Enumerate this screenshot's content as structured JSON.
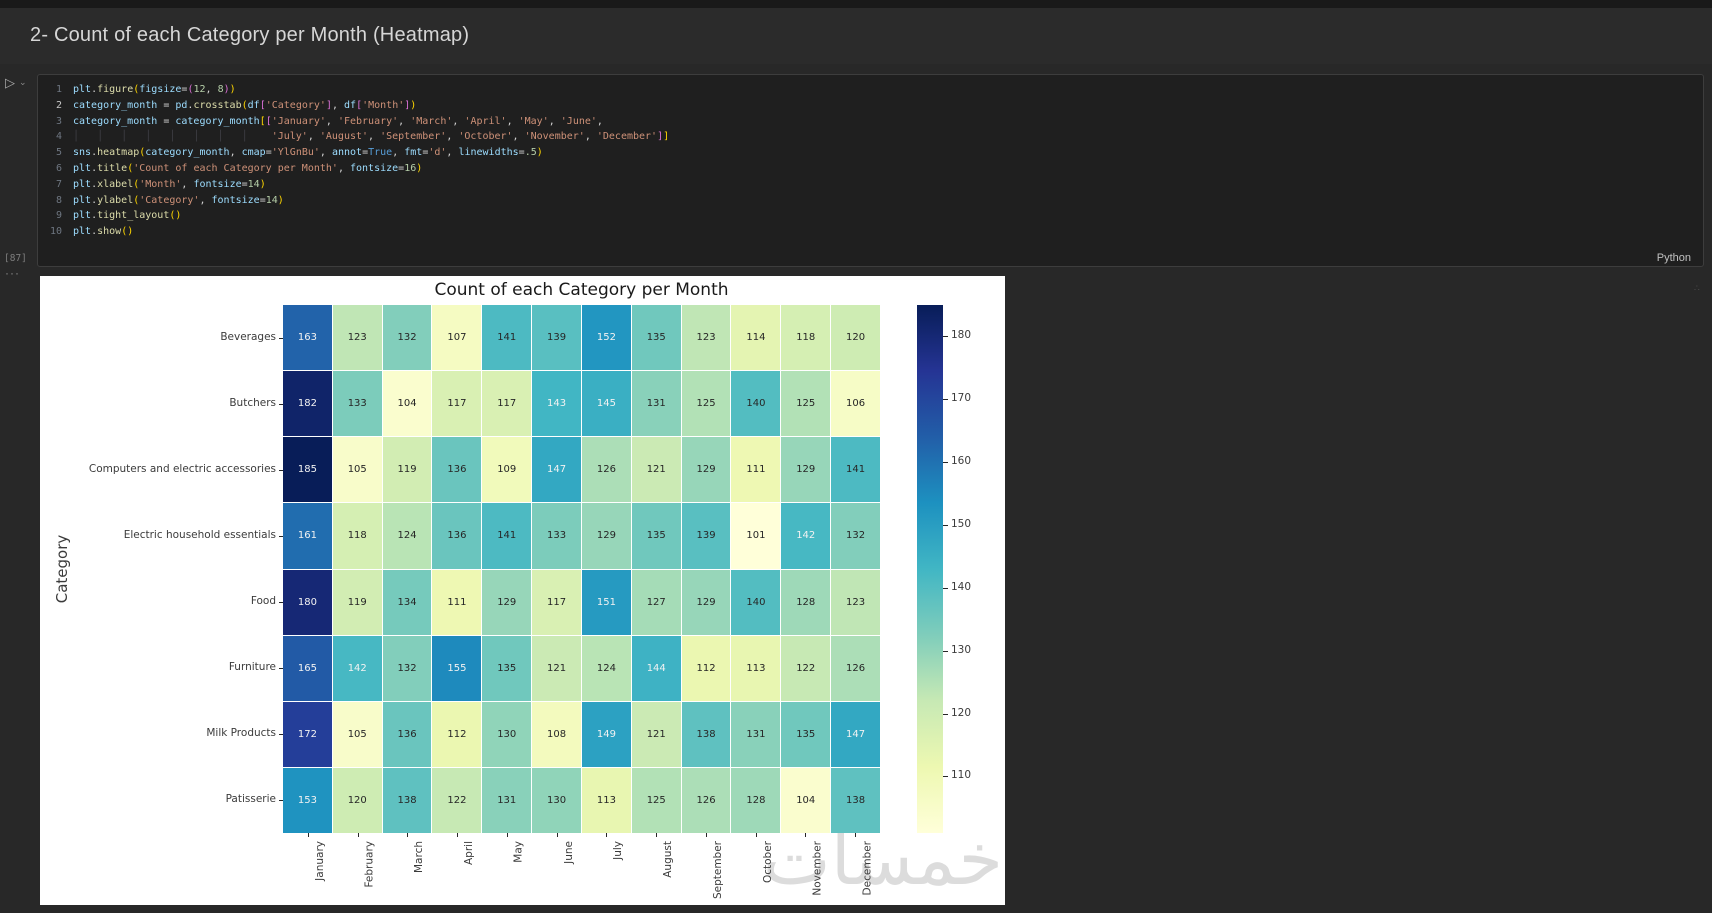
{
  "markdown": {
    "heading": "2- Count of each Category per Month (Heatmap)"
  },
  "cell": {
    "execution_count": "[87]",
    "language_label": "Python",
    "overflow_dots": "···",
    "run_icon": "run-cell-play",
    "code_lines": [
      {
        "n": 1,
        "t": [
          [
            "v",
            "plt"
          ],
          [
            "p",
            "."
          ],
          [
            "f",
            "figure"
          ],
          [
            "b1",
            "("
          ],
          [
            "v",
            "figsize"
          ],
          [
            "p",
            "="
          ],
          [
            "b2",
            "("
          ],
          [
            "n",
            "12"
          ],
          [
            "p",
            ", "
          ],
          [
            "n",
            "8"
          ],
          [
            "b2",
            ")"
          ],
          [
            "b1",
            ")"
          ]
        ]
      },
      {
        "n": 2,
        "t": [
          [
            "v",
            "category_month"
          ],
          [
            "p",
            " = "
          ],
          [
            "v",
            "pd"
          ],
          [
            "p",
            "."
          ],
          [
            "f",
            "crosstab"
          ],
          [
            "b1",
            "("
          ],
          [
            "v",
            "df"
          ],
          [
            "b2",
            "["
          ],
          [
            "s",
            "'Category'"
          ],
          [
            "b2",
            "]"
          ],
          [
            "p",
            ", "
          ],
          [
            "v",
            "df"
          ],
          [
            "b2",
            "["
          ],
          [
            "s",
            "'Month'"
          ],
          [
            "b2",
            "]"
          ],
          [
            "b1",
            ")"
          ]
        ]
      },
      {
        "n": 3,
        "t": [
          [
            "v",
            "category_month"
          ],
          [
            "p",
            " = "
          ],
          [
            "v",
            "category_month"
          ],
          [
            "b1",
            "["
          ],
          [
            "b2",
            "["
          ],
          [
            "s",
            "'January'"
          ],
          [
            "p",
            ", "
          ],
          [
            "s",
            "'February'"
          ],
          [
            "p",
            ", "
          ],
          [
            "s",
            "'March'"
          ],
          [
            "p",
            ", "
          ],
          [
            "s",
            "'April'"
          ],
          [
            "p",
            ", "
          ],
          [
            "s",
            "'May'"
          ],
          [
            "p",
            ", "
          ],
          [
            "s",
            "'June'"
          ],
          [
            "p",
            ","
          ]
        ]
      },
      {
        "n": 4,
        "t": [
          [
            "g",
            "│   │   │   │   │   │   │   │   "
          ],
          [
            "p",
            " "
          ],
          [
            "s",
            "'July'"
          ],
          [
            "p",
            ", "
          ],
          [
            "s",
            "'August'"
          ],
          [
            "p",
            ", "
          ],
          [
            "s",
            "'September'"
          ],
          [
            "p",
            ", "
          ],
          [
            "s",
            "'October'"
          ],
          [
            "p",
            ", "
          ],
          [
            "s",
            "'November'"
          ],
          [
            "p",
            ", "
          ],
          [
            "s",
            "'December'"
          ],
          [
            "b2",
            "]"
          ],
          [
            "b1",
            "]"
          ]
        ]
      },
      {
        "n": 5,
        "t": [
          [
            "v",
            "sns"
          ],
          [
            "p",
            "."
          ],
          [
            "f",
            "heatmap"
          ],
          [
            "b1",
            "("
          ],
          [
            "v",
            "category_month"
          ],
          [
            "p",
            ", "
          ],
          [
            "v",
            "cmap"
          ],
          [
            "p",
            "="
          ],
          [
            "s",
            "'YlGnBu'"
          ],
          [
            "p",
            ", "
          ],
          [
            "v",
            "annot"
          ],
          [
            "p",
            "="
          ],
          [
            "k",
            "True"
          ],
          [
            "p",
            ", "
          ],
          [
            "v",
            "fmt"
          ],
          [
            "p",
            "="
          ],
          [
            "s",
            "'d'"
          ],
          [
            "p",
            ", "
          ],
          [
            "v",
            "linewidths"
          ],
          [
            "p",
            "="
          ],
          [
            "n",
            ".5"
          ],
          [
            "b1",
            ")"
          ]
        ]
      },
      {
        "n": 6,
        "t": [
          [
            "v",
            "plt"
          ],
          [
            "p",
            "."
          ],
          [
            "f",
            "title"
          ],
          [
            "b1",
            "("
          ],
          [
            "s",
            "'Count of each Category per Month'"
          ],
          [
            "p",
            ", "
          ],
          [
            "v",
            "fontsize"
          ],
          [
            "p",
            "="
          ],
          [
            "n",
            "16"
          ],
          [
            "b1",
            ")"
          ]
        ]
      },
      {
        "n": 7,
        "t": [
          [
            "v",
            "plt"
          ],
          [
            "p",
            "."
          ],
          [
            "f",
            "xlabel"
          ],
          [
            "b1",
            "("
          ],
          [
            "s",
            "'Month'"
          ],
          [
            "p",
            ", "
          ],
          [
            "v",
            "fontsize"
          ],
          [
            "p",
            "="
          ],
          [
            "n",
            "14"
          ],
          [
            "b1",
            ")"
          ]
        ]
      },
      {
        "n": 8,
        "t": [
          [
            "v",
            "plt"
          ],
          [
            "p",
            "."
          ],
          [
            "f",
            "ylabel"
          ],
          [
            "b1",
            "("
          ],
          [
            "s",
            "'Category'"
          ],
          [
            "p",
            ", "
          ],
          [
            "v",
            "fontsize"
          ],
          [
            "p",
            "="
          ],
          [
            "n",
            "14"
          ],
          [
            "b1",
            ")"
          ]
        ]
      },
      {
        "n": 9,
        "t": [
          [
            "v",
            "plt"
          ],
          [
            "p",
            "."
          ],
          [
            "f",
            "tight_layout"
          ],
          [
            "b1",
            "("
          ],
          [
            "b1",
            ")"
          ]
        ]
      },
      {
        "n": 10,
        "t": [
          [
            "v",
            "plt"
          ],
          [
            "p",
            "."
          ],
          [
            "f",
            "show"
          ],
          [
            "b1",
            "("
          ],
          [
            "b1",
            ")"
          ]
        ]
      }
    ]
  },
  "chart_data": {
    "type": "heatmap",
    "title": "Count of each Category per Month",
    "ylabel": "Category",
    "columns": [
      "January",
      "February",
      "March",
      "April",
      "May",
      "June",
      "July",
      "August",
      "September",
      "October",
      "November",
      "December"
    ],
    "rows": [
      "Beverages",
      "Butchers",
      "Computers and electric accessories",
      "Electric household essentials",
      "Food",
      "Furniture",
      "Milk Products",
      "Patisserie"
    ],
    "values": [
      [
        163,
        123,
        132,
        107,
        141,
        139,
        152,
        135,
        123,
        114,
        118,
        120
      ],
      [
        182,
        133,
        104,
        117,
        117,
        143,
        145,
        131,
        125,
        140,
        125,
        106
      ],
      [
        185,
        105,
        119,
        136,
        109,
        147,
        126,
        121,
        129,
        111,
        129,
        141
      ],
      [
        161,
        118,
        124,
        136,
        141,
        133,
        129,
        135,
        139,
        101,
        142,
        132
      ],
      [
        180,
        119,
        134,
        111,
        129,
        117,
        151,
        127,
        129,
        140,
        128,
        123
      ],
      [
        165,
        142,
        132,
        155,
        135,
        121,
        124,
        144,
        112,
        113,
        122,
        126
      ],
      [
        172,
        105,
        136,
        112,
        130,
        108,
        149,
        121,
        138,
        131,
        135,
        147
      ],
      [
        153,
        120,
        138,
        122,
        131,
        130,
        113,
        125,
        126,
        128,
        104,
        138
      ]
    ],
    "cmap": "YlGnBu",
    "vmin": 101,
    "vmax": 185,
    "colorbar_ticks": [
      180,
      170,
      160,
      150,
      140,
      130,
      120,
      110
    ],
    "legend_position": "right-colorbar",
    "grid": false
  },
  "watermark": "خمسات"
}
